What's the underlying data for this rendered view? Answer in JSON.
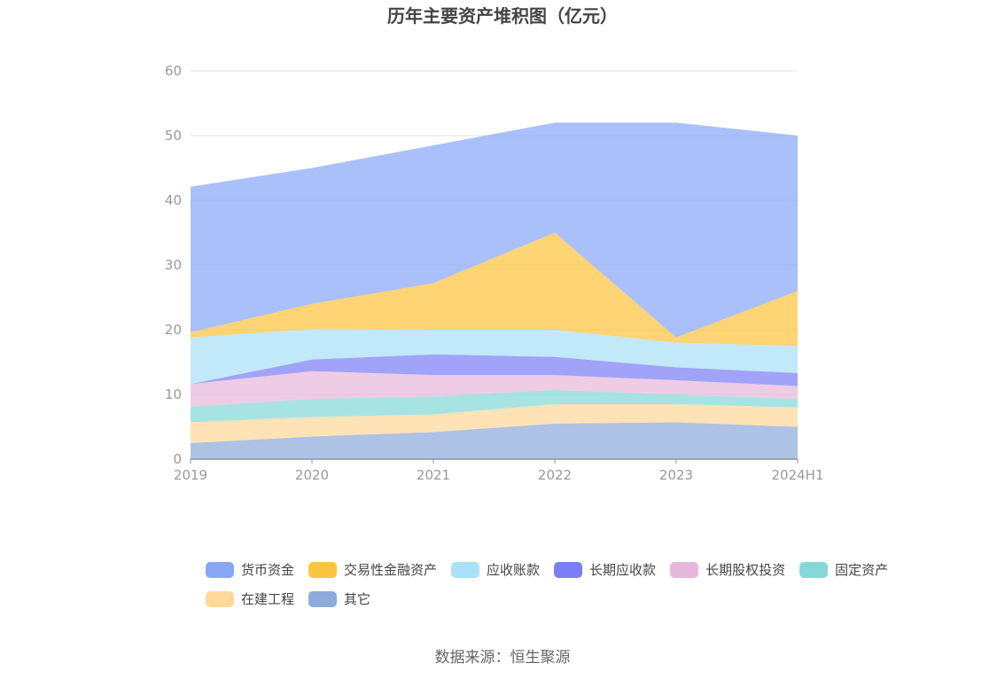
{
  "chart_data": {
    "type": "area",
    "stacked": true,
    "title": "历年主要资产堆积图（亿元）",
    "categories": [
      "2019",
      "2020",
      "2021",
      "2022",
      "2023",
      "2024H1"
    ],
    "ylim": [
      0,
      60
    ],
    "yticks": [
      0,
      10,
      20,
      30,
      40,
      50,
      60
    ],
    "grid": true,
    "legend_position": "bottom",
    "series": [
      {
        "name": "其它",
        "color": "#8eaadb",
        "values": [
          2.5,
          3.5,
          4.2,
          5.5,
          5.7,
          5.0
        ]
      },
      {
        "name": "在建工程",
        "color": "#ffd89a",
        "values": [
          3.2,
          3.0,
          2.7,
          3.0,
          2.8,
          3.0
        ]
      },
      {
        "name": "固定资产",
        "color": "#86d8d8",
        "values": [
          2.4,
          2.8,
          2.8,
          2.2,
          1.5,
          1.3
        ]
      },
      {
        "name": "长期股权投资",
        "color": "#e8b8dc",
        "values": [
          3.5,
          4.3,
          3.3,
          2.3,
          2.2,
          2.0
        ]
      },
      {
        "name": "长期应收款",
        "color": "#7b7ff5",
        "values": [
          0.0,
          1.8,
          3.2,
          2.8,
          2.0,
          2.0
        ]
      },
      {
        "name": "应收账款",
        "color": "#a9e1f8",
        "values": [
          7.2,
          4.7,
          3.8,
          4.2,
          3.8,
          4.2
        ]
      },
      {
        "name": "交易性金融资产",
        "color": "#fdc43f",
        "values": [
          0.8,
          3.9,
          7.2,
          15.0,
          0.8,
          8.5
        ]
      },
      {
        "name": "货币资金",
        "color": "#89a7f8",
        "values": [
          22.5,
          21.0,
          21.3,
          17.0,
          33.2,
          24.0
        ]
      }
    ]
  },
  "source_note": "数据来源：恒生聚源"
}
